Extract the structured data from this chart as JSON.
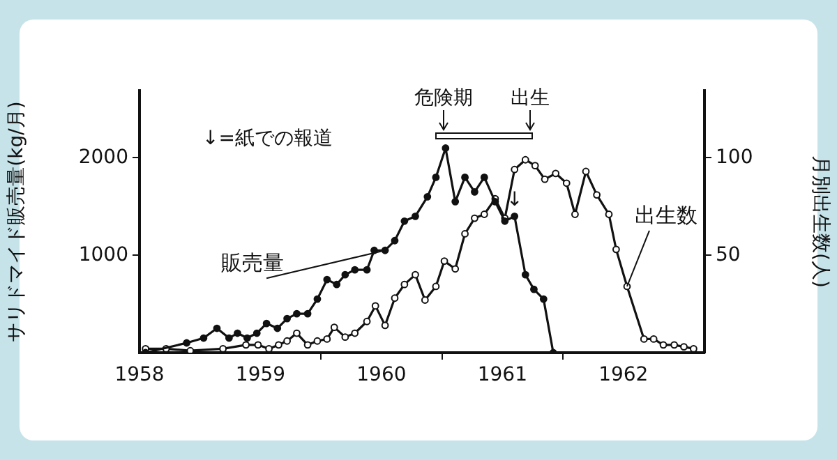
{
  "chart_data": {
    "type": "line",
    "ylabel": "サリドマイド販売量(kg/月)",
    "y2label": "月別出生数(人)",
    "xlim": [
      1958.0,
      1962.67
    ],
    "xticks": [
      1958,
      1959,
      {
        "value": 1959.5,
        "label": null
      },
      1960,
      {
        "value": 1960.5,
        "label": null
      },
      1961,
      {
        "value": 1961.5,
        "label": null
      },
      1962
    ],
    "ylim": [
      0,
      2690
    ],
    "yticks": [
      1000,
      2000
    ],
    "y2lim": [
      0,
      134.5
    ],
    "y2ticks": [
      50,
      100
    ],
    "grid": false,
    "legend": false,
    "marker": "circle",
    "line_style": "solid",
    "series": [
      {
        "name": "販売量",
        "color": "#111111",
        "x": [
          1958.05,
          1958.39,
          1958.53,
          1958.64,
          1958.74,
          1958.81,
          1958.89,
          1958.97,
          1959.05,
          1959.14,
          1959.22,
          1959.3,
          1959.39,
          1959.47,
          1959.55,
          1959.63,
          1959.7,
          1959.78,
          1959.88,
          1959.94,
          1960.03,
          1960.11,
          1960.19,
          1960.28,
          1960.38,
          1960.45,
          1960.53,
          1960.61,
          1960.69,
          1960.77,
          1960.85,
          1960.94,
          1961.02,
          1961.1,
          1961.19,
          1961.26,
          1961.34,
          1961.42
        ],
        "values": [
          0,
          100,
          150,
          250,
          150,
          200,
          150,
          200,
          300,
          250,
          350,
          400,
          400,
          550,
          750,
          700,
          800,
          850,
          850,
          1050,
          1050,
          1150,
          1350,
          1400,
          1600,
          1800,
          2100,
          1550,
          1800,
          1650,
          1800,
          1550,
          1350,
          1400,
          800,
          650,
          550,
          0
        ]
      },
      {
        "name": "出生数",
        "color": "#111111",
        "axis": "y2",
        "x": [
          1958.05,
          1958.22,
          1958.42,
          1958.69,
          1958.88,
          1958.98,
          1959.07,
          1959.15,
          1959.22,
          1959.3,
          1959.39,
          1959.47,
          1959.55,
          1959.61,
          1959.7,
          1959.78,
          1959.88,
          1959.95,
          1960.03,
          1960.11,
          1960.19,
          1960.28,
          1960.36,
          1960.45,
          1960.52,
          1960.61,
          1960.69,
          1960.77,
          1960.85,
          1960.94,
          1961.02,
          1961.1,
          1961.19,
          1961.27,
          1961.35,
          1961.44,
          1961.53,
          1961.6,
          1961.69,
          1961.78,
          1961.88,
          1961.94,
          1962.03,
          1962.17,
          1962.25,
          1962.33,
          1962.42,
          1962.5,
          1962.58
        ],
        "values": [
          2,
          2,
          1,
          2,
          4,
          4,
          2,
          4,
          6,
          10,
          4,
          6,
          7,
          13,
          8,
          10,
          16,
          24,
          14,
          28,
          35,
          40,
          27,
          34,
          47,
          43,
          61,
          69,
          71,
          79,
          69,
          94,
          99,
          96,
          89,
          92,
          87,
          71,
          93,
          81,
          71,
          53,
          34,
          7,
          7,
          4,
          4,
          3,
          2
        ]
      }
    ],
    "annotations": [
      "↓=紙での報道",
      "危険期",
      "出生",
      {
        "text": "↓",
        "x": 1961.1,
        "y": 1560
      }
    ]
  }
}
